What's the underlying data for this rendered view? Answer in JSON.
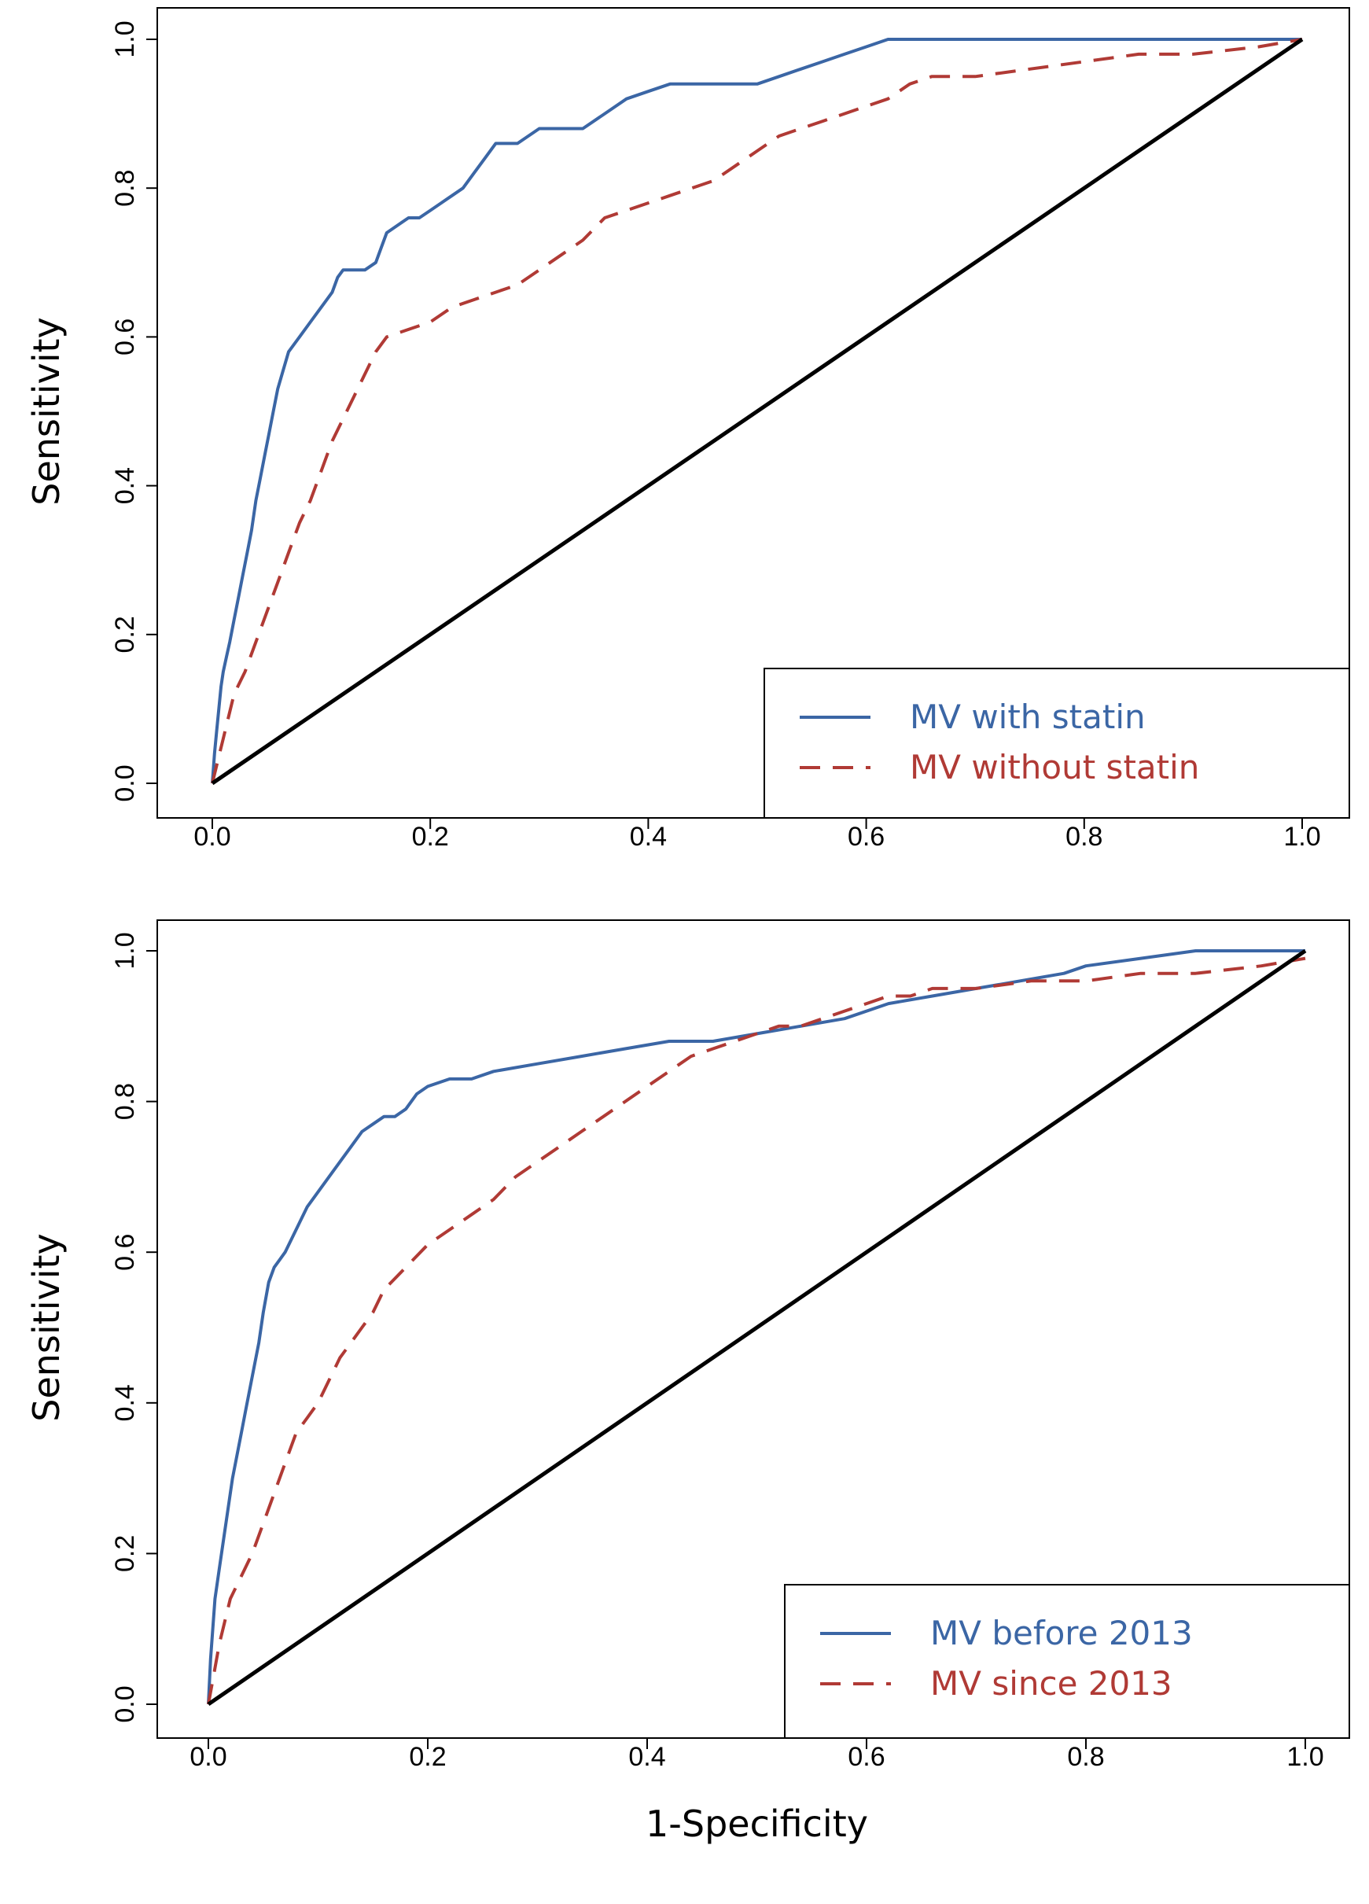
{
  "chart_data": [
    {
      "type": "line",
      "panel": "top",
      "title": "",
      "xlabel": "",
      "ylabel": "Sensitivity",
      "xlim": [
        0,
        1
      ],
      "ylim": [
        0,
        1
      ],
      "xticks": [
        "0.0",
        "0.2",
        "0.4",
        "0.6",
        "0.8",
        "1.0"
      ],
      "yticks": [
        "0.0",
        "0.2",
        "0.4",
        "0.6",
        "0.8",
        "1.0"
      ],
      "legend_position": "bottom-right",
      "series": [
        {
          "name": "MV with statin",
          "color": "#3b66a5",
          "style": "solid",
          "x": [
            0,
            0.002,
            0.004,
            0.006,
            0.008,
            0.01,
            0.013,
            0.016,
            0.02,
            0.024,
            0.028,
            0.032,
            0.036,
            0.04,
            0.044,
            0.048,
            0.052,
            0.056,
            0.06,
            0.064,
            0.07,
            0.08,
            0.09,
            0.1,
            0.11,
            0.115,
            0.12,
            0.13,
            0.14,
            0.15,
            0.155,
            0.16,
            0.17,
            0.18,
            0.19,
            0.2,
            0.21,
            0.22,
            0.23,
            0.24,
            0.25,
            0.26,
            0.28,
            0.3,
            0.34,
            0.36,
            0.38,
            0.4,
            0.42,
            0.5,
            0.52,
            0.54,
            0.56,
            0.58,
            0.6,
            0.62,
            0.64,
            0.7,
            0.8,
            0.9,
            1.0
          ],
          "y": [
            0,
            0.04,
            0.07,
            0.1,
            0.13,
            0.15,
            0.17,
            0.19,
            0.22,
            0.25,
            0.28,
            0.31,
            0.34,
            0.38,
            0.41,
            0.44,
            0.47,
            0.5,
            0.53,
            0.55,
            0.58,
            0.6,
            0.62,
            0.64,
            0.66,
            0.68,
            0.69,
            0.69,
            0.69,
            0.7,
            0.72,
            0.74,
            0.75,
            0.76,
            0.76,
            0.77,
            0.78,
            0.79,
            0.8,
            0.82,
            0.84,
            0.86,
            0.86,
            0.88,
            0.88,
            0.9,
            0.92,
            0.93,
            0.94,
            0.94,
            0.95,
            0.96,
            0.97,
            0.98,
            0.99,
            1.0,
            1.0,
            1.0,
            1.0,
            1.0,
            1.0
          ]
        },
        {
          "name": "MV without statin",
          "color": "#b03a35",
          "style": "dashed",
          "x": [
            0,
            0.005,
            0.01,
            0.015,
            0.02,
            0.03,
            0.04,
            0.05,
            0.06,
            0.07,
            0.08,
            0.09,
            0.1,
            0.11,
            0.12,
            0.13,
            0.14,
            0.15,
            0.16,
            0.18,
            0.2,
            0.22,
            0.24,
            0.26,
            0.28,
            0.3,
            0.32,
            0.34,
            0.36,
            0.38,
            0.4,
            0.42,
            0.44,
            0.46,
            0.48,
            0.5,
            0.52,
            0.54,
            0.56,
            0.58,
            0.6,
            0.62,
            0.64,
            0.66,
            0.7,
            0.75,
            0.8,
            0.85,
            0.9,
            0.96,
            1.0
          ],
          "y": [
            0,
            0.03,
            0.06,
            0.09,
            0.12,
            0.15,
            0.19,
            0.23,
            0.27,
            0.31,
            0.35,
            0.38,
            0.42,
            0.46,
            0.49,
            0.52,
            0.55,
            0.58,
            0.6,
            0.61,
            0.62,
            0.64,
            0.65,
            0.66,
            0.67,
            0.69,
            0.71,
            0.73,
            0.76,
            0.77,
            0.78,
            0.79,
            0.8,
            0.81,
            0.83,
            0.85,
            0.87,
            0.88,
            0.89,
            0.9,
            0.91,
            0.92,
            0.94,
            0.95,
            0.95,
            0.96,
            0.97,
            0.98,
            0.98,
            0.99,
            1.0
          ]
        },
        {
          "name": "reference",
          "color": "#000000",
          "style": "solid",
          "x": [
            0,
            1
          ],
          "y": [
            0,
            1
          ]
        }
      ]
    },
    {
      "type": "line",
      "panel": "bottom",
      "title": "",
      "xlabel": "1-Specificity",
      "ylabel": "Sensitivity",
      "xlim": [
        0,
        1
      ],
      "ylim": [
        0,
        1
      ],
      "xticks": [
        "0.0",
        "0.2",
        "0.4",
        "0.6",
        "0.8",
        "1.0"
      ],
      "yticks": [
        "0.0",
        "0.2",
        "0.4",
        "0.6",
        "0.8",
        "1.0"
      ],
      "legend_position": "bottom-right",
      "series": [
        {
          "name": "MV before 2013",
          "color": "#3b66a5",
          "style": "solid",
          "x": [
            0,
            0.002,
            0.004,
            0.006,
            0.01,
            0.014,
            0.018,
            0.022,
            0.026,
            0.03,
            0.034,
            0.038,
            0.042,
            0.046,
            0.05,
            0.055,
            0.06,
            0.065,
            0.07,
            0.08,
            0.09,
            0.1,
            0.11,
            0.12,
            0.13,
            0.14,
            0.15,
            0.16,
            0.17,
            0.18,
            0.19,
            0.2,
            0.22,
            0.24,
            0.26,
            0.3,
            0.34,
            0.38,
            0.42,
            0.46,
            0.5,
            0.54,
            0.58,
            0.62,
            0.66,
            0.7,
            0.74,
            0.78,
            0.8,
            0.85,
            0.9,
            1.0
          ],
          "y": [
            0,
            0.06,
            0.1,
            0.14,
            0.18,
            0.22,
            0.26,
            0.3,
            0.33,
            0.36,
            0.39,
            0.42,
            0.45,
            0.48,
            0.52,
            0.56,
            0.58,
            0.59,
            0.6,
            0.63,
            0.66,
            0.68,
            0.7,
            0.72,
            0.74,
            0.76,
            0.77,
            0.78,
            0.78,
            0.79,
            0.81,
            0.82,
            0.83,
            0.83,
            0.84,
            0.85,
            0.86,
            0.87,
            0.88,
            0.88,
            0.89,
            0.9,
            0.91,
            0.93,
            0.94,
            0.95,
            0.96,
            0.97,
            0.98,
            0.99,
            1.0,
            1.0
          ]
        },
        {
          "name": "MV since 2013",
          "color": "#b03a35",
          "style": "dashed",
          "x": [
            0,
            0.005,
            0.01,
            0.015,
            0.02,
            0.03,
            0.04,
            0.05,
            0.06,
            0.07,
            0.08,
            0.09,
            0.1,
            0.11,
            0.12,
            0.13,
            0.14,
            0.15,
            0.16,
            0.18,
            0.2,
            0.22,
            0.24,
            0.26,
            0.28,
            0.3,
            0.32,
            0.34,
            0.36,
            0.38,
            0.4,
            0.42,
            0.44,
            0.46,
            0.48,
            0.5,
            0.52,
            0.54,
            0.56,
            0.58,
            0.6,
            0.62,
            0.64,
            0.66,
            0.7,
            0.75,
            0.8,
            0.85,
            0.9,
            0.96,
            1.0
          ],
          "y": [
            0,
            0.04,
            0.08,
            0.11,
            0.14,
            0.17,
            0.2,
            0.24,
            0.28,
            0.32,
            0.36,
            0.38,
            0.4,
            0.43,
            0.46,
            0.48,
            0.5,
            0.52,
            0.55,
            0.58,
            0.61,
            0.63,
            0.65,
            0.67,
            0.7,
            0.72,
            0.74,
            0.76,
            0.78,
            0.8,
            0.82,
            0.84,
            0.86,
            0.87,
            0.88,
            0.89,
            0.9,
            0.9,
            0.91,
            0.92,
            0.93,
            0.94,
            0.94,
            0.95,
            0.95,
            0.96,
            0.96,
            0.97,
            0.97,
            0.98,
            0.99
          ]
        },
        {
          "name": "reference",
          "color": "#000000",
          "style": "solid",
          "x": [
            0,
            1
          ],
          "y": [
            0,
            1
          ]
        }
      ]
    }
  ]
}
